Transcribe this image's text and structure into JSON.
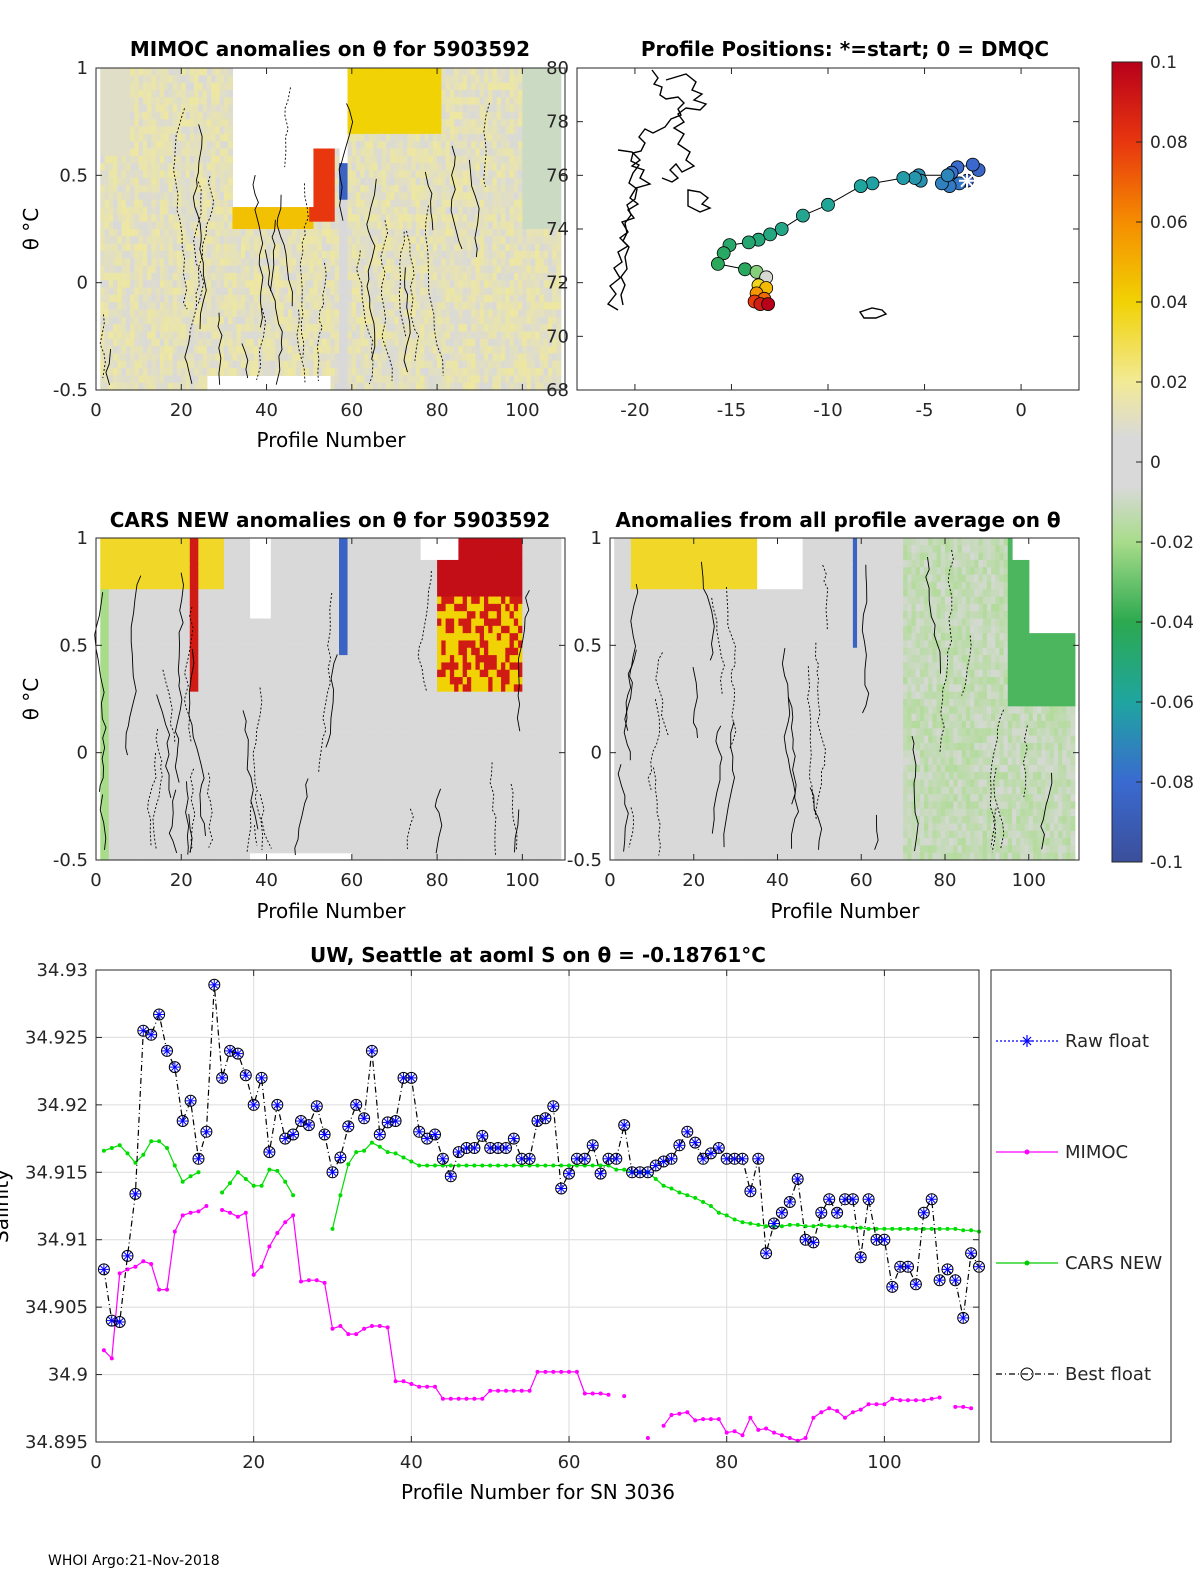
{
  "footer": "WHOI Argo:21-Nov-2018",
  "colors": {
    "raw": "#0000ff",
    "mimoc": "#ff00ff",
    "cars": "#00dd00",
    "best": "#000000",
    "gray": "#d9d9d9",
    "land": "#000000"
  },
  "chart_data": [
    {
      "id": "mimoc",
      "type": "heatmap",
      "title": "MIMOC anomalies on θ  for 5903592",
      "xlabel": "Profile Number",
      "ylabel": "θ °C",
      "xlim": [
        0,
        110
      ],
      "ylim": [
        -0.5,
        1
      ],
      "xticks": [
        0,
        20,
        40,
        60,
        80,
        100
      ],
      "yticks": [
        -0.5,
        0,
        0.5,
        1
      ],
      "ytick_labels": [
        "-0.5",
        "0",
        "0.5",
        "1"
      ]
    },
    {
      "id": "map",
      "type": "scatter",
      "title": "Profile Positions: *=start; 0 = DMQC",
      "xlim": [
        -23,
        3
      ],
      "ylim": [
        68,
        80
      ],
      "xticks": [
        -20,
        -15,
        -10,
        -5,
        0
      ],
      "yticks": [
        68,
        70,
        72,
        74,
        76,
        78,
        80
      ],
      "track": [
        [
          -2.8,
          75.8
        ],
        [
          -2.2,
          76.2
        ],
        [
          -2.5,
          76.4
        ],
        [
          -3.3,
          76.3
        ],
        [
          -3.6,
          76.1
        ],
        [
          -3.2,
          75.7
        ],
        [
          -3.7,
          75.6
        ],
        [
          -4.1,
          75.7
        ],
        [
          -3.8,
          76.0
        ],
        [
          -5.3,
          76.0
        ],
        [
          -5.2,
          75.8
        ],
        [
          -5.5,
          75.9
        ],
        [
          -6.1,
          75.9
        ],
        [
          -7.7,
          75.7
        ],
        [
          -8.3,
          75.6
        ],
        [
          -10.0,
          74.9
        ],
        [
          -11.3,
          74.5
        ],
        [
          -12.4,
          74.0
        ],
        [
          -13.0,
          73.8
        ],
        [
          -13.6,
          73.6
        ],
        [
          -14.1,
          73.5
        ],
        [
          -15.1,
          73.4
        ],
        [
          -15.4,
          73.1
        ],
        [
          -15.7,
          72.7
        ],
        [
          -14.3,
          72.5
        ],
        [
          -13.7,
          72.4
        ],
        [
          -13.2,
          72.2
        ],
        [
          -13.6,
          71.9
        ],
        [
          -13.2,
          71.8
        ],
        [
          -13.7,
          71.6
        ],
        [
          -13.3,
          71.4
        ],
        [
          -13.8,
          71.3
        ],
        [
          -13.5,
          71.2
        ],
        [
          -13.1,
          71.2
        ]
      ],
      "colorbar": {
        "min": -0.1,
        "max": 0.1,
        "ticks": [
          "0.1",
          "0.08",
          "0.06",
          "0.04",
          "0.02",
          "0",
          "-0.02",
          "-0.04",
          "-0.06",
          "-0.08",
          "-0.1"
        ]
      }
    },
    {
      "id": "cars",
      "type": "heatmap",
      "title": "CARS NEW anomalies on θ for 5903592",
      "xlabel": "Profile Number",
      "ylabel": "θ °C",
      "xlim": [
        0,
        110
      ],
      "ylim": [
        -0.5,
        1
      ],
      "xticks": [
        0,
        20,
        40,
        60,
        80,
        100
      ],
      "yticks": [
        -0.5,
        0,
        0.5,
        1
      ],
      "ytick_labels": [
        "-0.5",
        "0",
        "0.5",
        "1"
      ]
    },
    {
      "id": "avg",
      "type": "heatmap",
      "title": "Anomalies from all profile average on θ",
      "xlabel": "Profile Number",
      "xlim": [
        0,
        112
      ],
      "ylim": [
        -0.5,
        1
      ],
      "xticks": [
        0,
        20,
        40,
        60,
        80,
        100
      ],
      "yticks": [
        -0.5,
        0,
        0.5,
        1
      ],
      "ytick_labels": [
        "-0.5",
        "0",
        "0.5",
        "1"
      ]
    },
    {
      "id": "salinity",
      "type": "line",
      "title_main": "UW, Seattle at aoml S on θ = -0.18761",
      "title_unit": "°C",
      "xlabel": "Profile Number for SN 3036",
      "ylabel": "Salinity",
      "xlim": [
        0,
        112
      ],
      "ylim": [
        34.895,
        34.93
      ],
      "xticks": [
        0,
        20,
        40,
        60,
        80,
        100
      ],
      "yticks": [
        34.895,
        34.9,
        34.905,
        34.91,
        34.915,
        34.92,
        34.925,
        34.93
      ],
      "ytick_labels": [
        "34.895",
        "34.9",
        "34.905",
        "34.91",
        "34.915",
        "34.92",
        "34.925",
        "34.93"
      ],
      "legend": [
        "Raw float",
        "MIMOC",
        "CARS NEW",
        "Best float"
      ],
      "float": [
        34.9078,
        34.904,
        34.9039,
        34.9088,
        34.9134,
        34.9255,
        34.9252,
        34.9267,
        34.924,
        34.9228,
        34.9188,
        34.9203,
        34.916,
        34.918,
        34.9289,
        34.922,
        34.924,
        34.9238,
        34.9222,
        34.92,
        34.922,
        34.9165,
        34.92,
        34.9175,
        34.9178,
        34.9188,
        34.9185,
        34.9199,
        34.9178,
        34.915,
        34.9161,
        34.9184,
        34.92,
        34.919,
        34.924,
        34.9178,
        34.9187,
        34.9188,
        34.922,
        34.922,
        34.918,
        34.9175,
        34.9178,
        34.916,
        34.9147,
        34.9165,
        34.9168,
        34.9168,
        34.9177,
        34.9168,
        34.9168,
        34.9168,
        34.9175,
        34.916,
        34.916,
        34.9188,
        34.919,
        34.9199,
        34.9138,
        34.9149,
        34.916,
        34.916,
        34.917,
        34.9149,
        34.916,
        34.916,
        34.9185,
        34.915,
        34.915,
        34.915,
        34.9155,
        34.9158,
        34.916,
        34.917,
        34.918,
        34.9172,
        34.916,
        34.9164,
        34.9168,
        34.916,
        34.916,
        34.916,
        34.9136,
        34.916,
        34.909,
        34.9112,
        34.912,
        34.9128,
        34.9145,
        34.91,
        34.9098,
        34.912,
        34.913,
        34.912,
        34.913,
        34.913,
        34.9087,
        34.913,
        34.91,
        34.91,
        34.9065,
        34.908,
        34.908,
        34.9067,
        34.912,
        34.913,
        34.907,
        34.9078,
        34.907,
        34.9042,
        34.909,
        34.908
      ],
      "mimoc": [
        34.9018,
        34.9012,
        34.9075,
        34.9078,
        34.908,
        34.9084,
        34.9082,
        34.9063,
        34.9063,
        34.9106,
        34.9118,
        34.912,
        34.9121,
        34.9125,
        null,
        34.9122,
        34.912,
        34.9117,
        34.912,
        34.9074,
        34.908,
        34.9095,
        34.9105,
        34.9113,
        34.9118,
        34.9069,
        34.907,
        34.907,
        34.9068,
        34.9034,
        34.9036,
        34.903,
        34.903,
        34.9034,
        34.9036,
        34.9036,
        34.9035,
        34.8995,
        34.8995,
        34.8993,
        34.8991,
        34.8991,
        34.8991,
        34.8982,
        34.8982,
        34.8982,
        34.8982,
        34.8982,
        34.8982,
        34.8988,
        34.8988,
        34.8988,
        34.8988,
        34.8988,
        34.8988,
        34.9002,
        34.9002,
        34.9002,
        34.9002,
        34.9002,
        34.9002,
        34.8986,
        34.8986,
        34.8986,
        34.8985,
        null,
        34.8984,
        null,
        null,
        34.8953,
        null,
        34.8962,
        34.897,
        34.8971,
        34.8972,
        34.8966,
        34.8967,
        34.8967,
        34.8967,
        34.8957,
        34.8958,
        34.8955,
        34.8968,
        34.8959,
        34.896,
        34.8957,
        34.8955,
        34.8953,
        34.8951,
        34.8953,
        34.8968,
        34.8972,
        34.8975,
        34.8973,
        34.8968,
        34.8972,
        34.8974,
        34.8978,
        34.8978,
        34.8978,
        34.8982,
        34.8981,
        34.8981,
        34.8981,
        34.8981,
        34.8982,
        34.8983,
        null,
        34.8976,
        34.8976,
        34.8975
      ],
      "cars": [
        34.9166,
        34.9168,
        34.917,
        34.9164,
        34.9157,
        34.9163,
        34.9173,
        34.9173,
        34.9168,
        34.9155,
        34.9143,
        34.9147,
        34.915,
        null,
        null,
        34.9135,
        34.9142,
        34.915,
        34.9145,
        34.914,
        34.914,
        34.9152,
        34.9151,
        34.9143,
        34.9133,
        null,
        null,
        null,
        null,
        34.9108,
        34.9133,
        34.9156,
        34.9165,
        34.9166,
        34.9172,
        34.9169,
        34.9165,
        34.9164,
        34.9161,
        34.9158,
        34.9155,
        34.9155,
        34.9155,
        34.9155,
        34.9155,
        34.9155,
        34.9155,
        34.9155,
        34.9155,
        34.9155,
        34.9155,
        34.9155,
        34.9155,
        34.9155,
        34.9155,
        34.9155,
        34.9155,
        34.9155,
        34.9155,
        34.9155,
        34.9155,
        34.9155,
        34.9155,
        34.9155,
        34.9155,
        34.9152,
        34.9152,
        34.915,
        34.915,
        34.915,
        34.9145,
        34.914,
        34.9138,
        34.9135,
        34.9133,
        34.9131,
        34.9128,
        34.9125,
        34.912,
        34.9118,
        34.9115,
        34.9113,
        34.9112,
        34.9111,
        34.911,
        34.911,
        34.911,
        34.9111,
        34.9111,
        34.911,
        34.911,
        34.9111,
        34.911,
        34.911,
        34.911,
        34.9109,
        34.9109,
        34.9108,
        34.9108,
        34.9108,
        34.9108,
        34.9108,
        34.9108,
        34.9108,
        34.9108,
        34.9108,
        34.9108,
        34.9108,
        34.9108,
        34.9107,
        34.9107,
        34.9106
      ]
    }
  ]
}
